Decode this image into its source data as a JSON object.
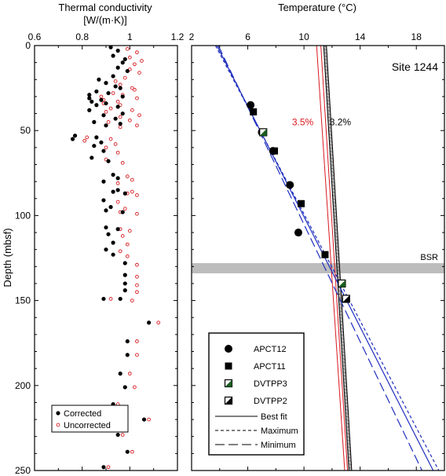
{
  "chart_data": [
    {
      "type": "scatter",
      "title": "Thermal conductivity",
      "xlabel": "[W/(m·K)]",
      "ylabel": "Depth (mbsf)",
      "xlim": [
        0.6,
        1.2
      ],
      "ylim": [
        0,
        250
      ],
      "x_ticks": [
        "0.6",
        "0.8",
        "1",
        "1.2"
      ],
      "y_ticks": [
        "0",
        "50",
        "100",
        "150",
        "200",
        "250"
      ],
      "legend_position": "bottom-left",
      "series": [
        {
          "name": "Corrected",
          "marker": "filled-circle",
          "color": "#000000",
          "points": [
            [
              0.92,
              1
            ],
            [
              0.95,
              3
            ],
            [
              0.93,
              6
            ],
            [
              0.98,
              8
            ],
            [
              0.97,
              10
            ],
            [
              0.95,
              13
            ],
            [
              0.99,
              15
            ],
            [
              0.93,
              18
            ],
            [
              0.87,
              20
            ],
            [
              0.9,
              22
            ],
            [
              0.94,
              24
            ],
            [
              0.96,
              25
            ],
            [
              0.86,
              27
            ],
            [
              0.91,
              28
            ],
            [
              0.83,
              29
            ],
            [
              0.97,
              30
            ],
            [
              0.83,
              31
            ],
            [
              0.88,
              32
            ],
            [
              0.84,
              33
            ],
            [
              0.9,
              34
            ],
            [
              0.86,
              35
            ],
            [
              0.95,
              36
            ],
            [
              0.83,
              38
            ],
            [
              0.97,
              40
            ],
            [
              0.89,
              41
            ],
            [
              0.94,
              43
            ],
            [
              0.85,
              45
            ],
            [
              0.96,
              46
            ],
            [
              0.9,
              47
            ],
            [
              0.77,
              53
            ],
            [
              0.76,
              55
            ],
            [
              0.86,
              54
            ],
            [
              0.88,
              57
            ],
            [
              0.85,
              59
            ],
            [
              0.89,
              62
            ],
            [
              0.84,
              66
            ],
            [
              0.91,
              68
            ],
            [
              0.93,
              76
            ],
            [
              0.95,
              78
            ],
            [
              0.89,
              80
            ],
            [
              0.95,
              85
            ],
            [
              0.93,
              86
            ],
            [
              0.98,
              87
            ],
            [
              0.89,
              91
            ],
            [
              0.92,
              95
            ],
            [
              0.9,
              97
            ],
            [
              0.97,
              98
            ],
            [
              0.9,
              107
            ],
            [
              0.95,
              108
            ],
            [
              0.91,
              111
            ],
            [
              0.93,
              116
            ],
            [
              0.9,
              120
            ],
            [
              0.93,
              123
            ],
            [
              0.98,
              128
            ],
            [
              0.98,
              135
            ],
            [
              0.98,
              140
            ],
            [
              0.98,
              144
            ],
            [
              0.89,
              149
            ],
            [
              0.96,
              149
            ],
            [
              1.08,
              163
            ],
            [
              0.99,
              174
            ],
            [
              0.99,
              182
            ],
            [
              0.96,
              193
            ],
            [
              0.98,
              201
            ],
            [
              0.93,
              211
            ],
            [
              1.06,
              220
            ],
            [
              0.95,
              229
            ],
            [
              0.99,
              239
            ],
            [
              0.89,
              248
            ]
          ]
        },
        {
          "name": "Uncorrected",
          "marker": "open-circle",
          "color": "#d71920",
          "points": [
            [
              0.99,
              2
            ],
            [
              1.03,
              4
            ],
            [
              1.0,
              7
            ],
            [
              1.05,
              9
            ],
            [
              1.02,
              11
            ],
            [
              1.0,
              14
            ],
            [
              1.04,
              16
            ],
            [
              0.98,
              19
            ],
            [
              0.94,
              21
            ],
            [
              0.96,
              23
            ],
            [
              1.01,
              25
            ],
            [
              1.02,
              26
            ],
            [
              0.93,
              28
            ],
            [
              0.97,
              29
            ],
            [
              0.88,
              30
            ],
            [
              1.03,
              31
            ],
            [
              0.89,
              32
            ],
            [
              0.95,
              33
            ],
            [
              0.89,
              34
            ],
            [
              0.96,
              35
            ],
            [
              0.92,
              37
            ],
            [
              1.01,
              38
            ],
            [
              0.9,
              39
            ],
            [
              1.04,
              41
            ],
            [
              0.96,
              42
            ],
            [
              1.0,
              44
            ],
            [
              0.91,
              45
            ],
            [
              1.03,
              47
            ],
            [
              0.96,
              48
            ],
            [
              0.82,
              54
            ],
            [
              0.81,
              56
            ],
            [
              0.92,
              55
            ],
            [
              0.94,
              58
            ],
            [
              0.9,
              60
            ],
            [
              0.95,
              63
            ],
            [
              0.9,
              67
            ],
            [
              0.97,
              69
            ],
            [
              0.99,
              77
            ],
            [
              1.01,
              79
            ],
            [
              0.95,
              81
            ],
            [
              1.01,
              86
            ],
            [
              0.99,
              87
            ],
            [
              1.03,
              88
            ],
            [
              0.95,
              92
            ],
            [
              0.98,
              96
            ],
            [
              0.96,
              98
            ],
            [
              1.03,
              99
            ],
            [
              0.96,
              108
            ],
            [
              1.0,
              109
            ],
            [
              0.97,
              112
            ],
            [
              0.99,
              117
            ],
            [
              0.96,
              121
            ],
            [
              0.99,
              124
            ],
            [
              1.03,
              129
            ],
            [
              1.03,
              136
            ],
            [
              1.03,
              141
            ],
            [
              1.03,
              145
            ],
            [
              0.92,
              149
            ],
            [
              1.01,
              150
            ],
            [
              1.12,
              163
            ],
            [
              1.03,
              174
            ],
            [
              1.03,
              182
            ],
            [
              1.0,
              193
            ],
            [
              1.02,
              201
            ],
            [
              0.95,
              211
            ],
            [
              1.08,
              220
            ],
            [
              0.97,
              229
            ],
            [
              1.01,
              239
            ],
            [
              0.91,
              248
            ]
          ]
        }
      ]
    },
    {
      "type": "line",
      "title": "Temperature (°C)",
      "site_label": "Site 1244",
      "xlim": [
        2,
        20
      ],
      "ylim": [
        0,
        250
      ],
      "x_ticks": [
        "2",
        "6",
        "10",
        "14",
        "18"
      ],
      "bsr": {
        "label": "BSR",
        "depth_top": 128,
        "depth_bottom": 134,
        "color": "#bdbdbd"
      },
      "gradient_lines": {
        "label_left": "3.5%",
        "label_right": "3.2%",
        "red_lines": [
          [
            [
              10.9,
              0
            ],
            [
              12.9,
              250
            ]
          ],
          [
            [
              11.2,
              0
            ],
            [
              13.1,
              250
            ]
          ]
        ],
        "black_lines": [
          [
            [
              11.4,
              0
            ],
            [
              13.2,
              250
            ]
          ],
          [
            [
              11.6,
              0
            ],
            [
              13.4,
              250
            ]
          ]
        ]
      },
      "fit_lines": [
        {
          "name": "Best fit",
          "style": "solid",
          "color": "#1f2fbf",
          "points": [
            [
              3.8,
              0
            ],
            [
              19.2,
              250
            ]
          ]
        },
        {
          "name": "Maximum",
          "style": "short-dash",
          "color": "#1f2fbf",
          "points": [
            [
              3.7,
              0
            ],
            [
              19.6,
              250
            ]
          ]
        },
        {
          "name": "Minimum",
          "style": "long-dash",
          "color": "#1f2fbf",
          "points": [
            [
              3.9,
              0
            ],
            [
              18.4,
              250
            ]
          ]
        }
      ],
      "measurements": [
        {
          "name": "APCT12",
          "marker": "filled-circle",
          "points": [
            [
              6.2,
              35
            ],
            [
              7.0,
              51
            ],
            [
              7.8,
              62
            ],
            [
              9.0,
              82
            ],
            [
              9.6,
              110
            ]
          ]
        },
        {
          "name": "APCT11",
          "marker": "filled-square",
          "points": [
            [
              6.4,
              39
            ],
            [
              7.9,
              62
            ],
            [
              9.8,
              93
            ],
            [
              11.5,
              123
            ]
          ]
        },
        {
          "name": "DVTPP3",
          "marker": "half-square-green",
          "points": [
            [
              7.1,
              51
            ],
            [
              12.7,
              140
            ]
          ]
        },
        {
          "name": "DVTPP2",
          "marker": "half-square",
          "points": [
            [
              13.0,
              149
            ]
          ]
        }
      ],
      "legend_items": [
        "APCT12",
        "APCT11",
        "DVTPP3",
        "DVTPP2",
        "Best fit",
        "Maximum",
        "Minimum"
      ]
    }
  ]
}
